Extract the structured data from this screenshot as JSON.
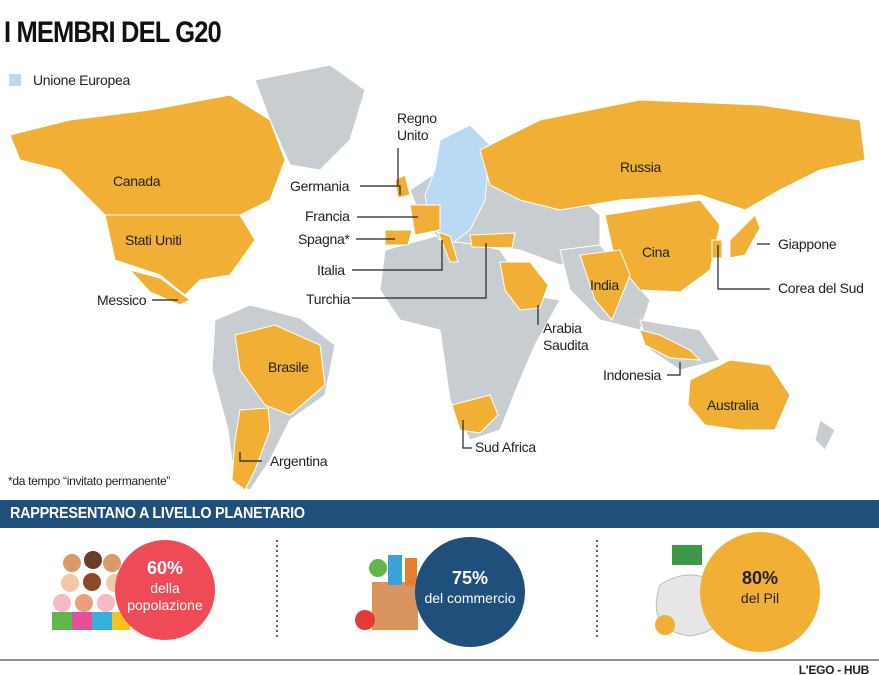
{
  "title": "I MEMBRI DEL G20",
  "legend": {
    "label": "Unione Europea"
  },
  "countries": [
    {
      "lines": [
        "Canada"
      ]
    },
    {
      "lines": [
        "Stati Uniti"
      ]
    },
    {
      "lines": [
        "Messico"
      ]
    },
    {
      "lines": [
        "Brasile"
      ]
    },
    {
      "lines": [
        "Argentina"
      ]
    },
    {
      "lines": [
        "Regno",
        "Unito"
      ]
    },
    {
      "lines": [
        "Germania"
      ]
    },
    {
      "lines": [
        "Francia"
      ]
    },
    {
      "lines": [
        "Spagna*"
      ]
    },
    {
      "lines": [
        "Italia"
      ]
    },
    {
      "lines": [
        "Turchia"
      ]
    },
    {
      "lines": [
        "Russia"
      ]
    },
    {
      "lines": [
        "Cina"
      ]
    },
    {
      "lines": [
        "India"
      ]
    },
    {
      "lines": [
        "Giappone"
      ]
    },
    {
      "lines": [
        "Corea del Sud"
      ]
    },
    {
      "lines": [
        "Arabia",
        "Saudita"
      ]
    },
    {
      "lines": [
        "Indonesia"
      ]
    },
    {
      "lines": [
        "Australia"
      ]
    },
    {
      "lines": [
        "Sud Africa"
      ]
    }
  ],
  "footnote": "*da tempo “invitato permanente”",
  "banner": "RAPPRESENTANO A LIVELLO PLANETARIO",
  "stats": [
    {
      "value": "60%",
      "lines": [
        "della",
        "popolazione"
      ]
    },
    {
      "value": "75%",
      "lines": [
        "del commercio"
      ]
    },
    {
      "value": "80%",
      "lines": [
        "del Pil"
      ]
    }
  ],
  "credit": "L'EGO - HUB"
}
